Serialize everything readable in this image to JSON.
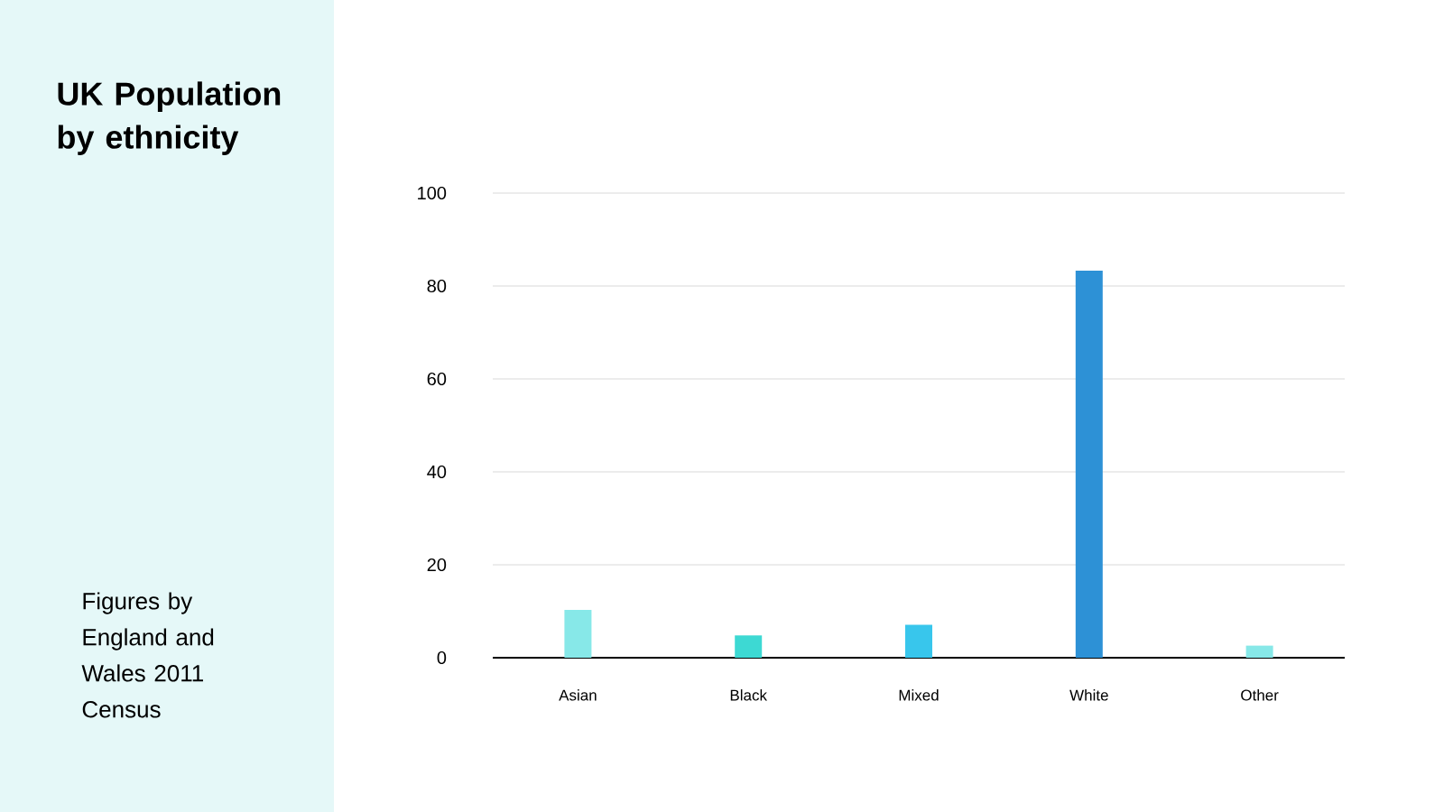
{
  "chart_data": {
    "type": "bar",
    "title": "UK Population by ethnicity",
    "annotations": [
      "Figures by England and Wales 2011 Census"
    ],
    "categories": [
      "Asian",
      "Black",
      "Mixed",
      "White",
      "Other"
    ],
    "values": [
      10.3,
      4.8,
      7.1,
      83.3,
      2.6
    ],
    "colors": [
      "#87e8e8",
      "#3dd9d3",
      "#38c6ec",
      "#2d91d6",
      "#87e8e8"
    ],
    "ylim": [
      0,
      100
    ],
    "yticks": [
      0,
      20,
      40,
      60,
      80,
      100
    ],
    "grid": "y"
  }
}
